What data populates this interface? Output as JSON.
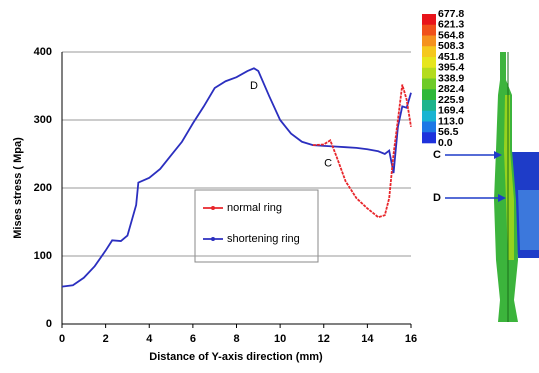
{
  "chart_data": {
    "type": "line",
    "x_label": "Distance of Y-axis direction (mm)",
    "y_label": "Mises stress ( Mpa)",
    "xlim": [
      0,
      16
    ],
    "xticks": [
      0,
      2,
      4,
      6,
      8,
      10,
      12,
      14,
      16
    ],
    "ylim": [
      0,
      400
    ],
    "yticks": [
      0,
      100,
      200,
      300,
      400
    ],
    "grid": true,
    "legend_position": "center",
    "series": [
      {
        "name": "normal ring",
        "color": "#e8262b",
        "x": [
          11.5,
          12,
          12.3,
          12.6,
          13,
          13.5,
          14,
          14.5,
          14.8,
          15,
          15.2,
          15.4,
          15.6,
          15.8,
          16
        ],
        "values": [
          263,
          264,
          270,
          245,
          210,
          185,
          170,
          157,
          160,
          185,
          250,
          300,
          352,
          330,
          290
        ]
      },
      {
        "name": "shortening ring",
        "color": "#2b2fbf",
        "x": [
          0,
          0.5,
          1,
          1.5,
          2,
          2.3,
          2.7,
          3,
          3.4,
          3.5,
          4,
          4.5,
          5,
          5.5,
          6,
          6.5,
          7,
          7.5,
          8,
          8.5,
          8.8,
          9,
          9.5,
          10,
          10.5,
          11,
          11.5,
          12,
          12.5,
          13,
          13.5,
          14,
          14.5,
          14.8,
          15,
          15.2,
          15.4,
          15.6,
          15.8,
          16
        ],
        "values": [
          55,
          57,
          68,
          85,
          108,
          123,
          122,
          130,
          175,
          208,
          215,
          228,
          248,
          268,
          295,
          320,
          347,
          357,
          363,
          372,
          376,
          372,
          335,
          300,
          280,
          268,
          263,
          262,
          261,
          260,
          259,
          257,
          254,
          250,
          255,
          222,
          290,
          320,
          318,
          340
        ]
      }
    ],
    "annotations": [
      {
        "text": "D",
        "x": 8.8,
        "y": 350
      },
      {
        "text": "C",
        "x": 12.2,
        "y": 236
      }
    ]
  },
  "colorbar": {
    "ticks": [
      {
        "value": 677.8,
        "label": "677.8"
      },
      {
        "value": 621.3,
        "label": "621.3"
      },
      {
        "value": 564.8,
        "label": "564.8"
      },
      {
        "value": 508.3,
        "label": "508.3"
      },
      {
        "value": 451.8,
        "label": "451.8"
      },
      {
        "value": 395.4,
        "label": "395.4"
      },
      {
        "value": 338.9,
        "label": "338.9"
      },
      {
        "value": 282.4,
        "label": "282.4"
      },
      {
        "value": 225.9,
        "label": "225.9"
      },
      {
        "value": 169.4,
        "label": "169.4"
      },
      {
        "value": 113,
        "label": "113.0"
      },
      {
        "value": 56.5,
        "label": "56.5"
      },
      {
        "value": 0,
        "label": "0.0"
      }
    ],
    "colors": [
      "#e8141a",
      "#f0501a",
      "#f5911e",
      "#f5c81e",
      "#e6e61e",
      "#b4dc1e",
      "#6ecb28",
      "#2fb83a",
      "#1eb48c",
      "#19b4d2",
      "#1e78e6",
      "#1e32dc"
    ]
  },
  "model_labels": [
    "C",
    "D"
  ]
}
